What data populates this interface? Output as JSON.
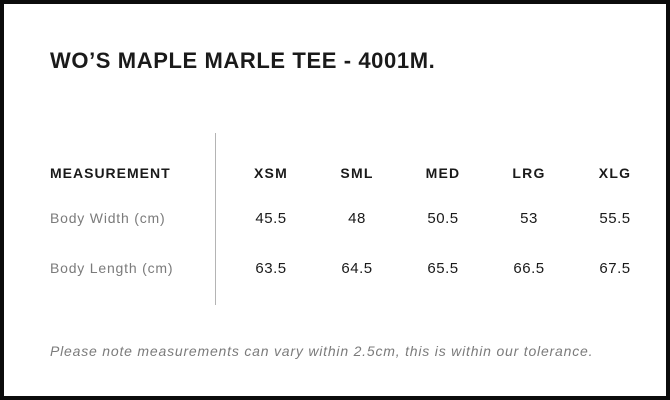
{
  "product": {
    "title": "WO’S MAPLE MARLE TEE - 4001M."
  },
  "size_chart": {
    "label_header": "MEASUREMENT",
    "columns": [
      "XSM",
      "SML",
      "MED",
      "LRG",
      "XLG"
    ],
    "rows": [
      {
        "label": "Body Width (cm)",
        "values": [
          "45.5",
          "48",
          "50.5",
          "53",
          "55.5"
        ]
      },
      {
        "label": "Body Length (cm)",
        "values": [
          "63.5",
          "64.5",
          "65.5",
          "66.5",
          "67.5"
        ]
      }
    ]
  },
  "footnote": "Please note measurements can vary within 2.5cm, this is within our tolerance.",
  "colors": {
    "text": "#1a1a1a",
    "muted_text": "#7b7b7b",
    "divider": "#b4b4b4",
    "frame": "#0c0c0c",
    "background": "#ffffff"
  }
}
